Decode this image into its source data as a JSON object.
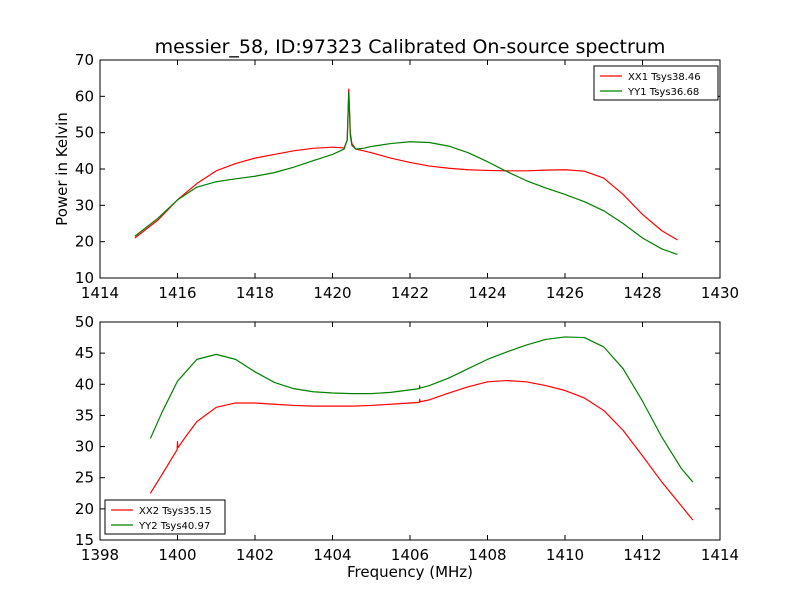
{
  "figure": {
    "title": "messier_58, ID:97323 Calibrated On-source spectrum",
    "ylabel": "Power in Kelvin",
    "xlabel": "Frequency (MHz)"
  },
  "colors": {
    "red": "#ff0000",
    "green": "#008000"
  },
  "chart_data": [
    {
      "type": "line",
      "title": "messier_58, ID:97323 Calibrated On-source spectrum",
      "ylabel": "Power in Kelvin",
      "xlabel": "",
      "xlim": [
        1414,
        1430
      ],
      "ylim": [
        10,
        70
      ],
      "xticks": [
        "1414",
        "1416",
        "1418",
        "1420",
        "1422",
        "1424",
        "1426",
        "1428",
        "1430"
      ],
      "yticks": [
        "10",
        "20",
        "30",
        "40",
        "50",
        "60",
        "70"
      ],
      "grid": false,
      "legend_position": "top-right",
      "series": [
        {
          "name": "XX1 Tsys38.46",
          "color": "#ff0000",
          "x": [
            1414.9,
            1415.5,
            1416.0,
            1416.5,
            1417.0,
            1417.5,
            1418.0,
            1418.5,
            1419.0,
            1419.5,
            1420.0,
            1420.3,
            1420.38,
            1420.42,
            1420.46,
            1420.5,
            1420.6,
            1420.8,
            1421.0,
            1421.5,
            1422.0,
            1422.5,
            1423.0,
            1423.5,
            1424.0,
            1424.5,
            1425.0,
            1425.5,
            1426.0,
            1426.5,
            1427.0,
            1427.5,
            1428.0,
            1428.5,
            1428.9
          ],
          "y": [
            21,
            26,
            31.5,
            36,
            39.5,
            41.5,
            43,
            44,
            45,
            45.7,
            46,
            45.8,
            48,
            62,
            50,
            47,
            45.5,
            45,
            44.5,
            43,
            41.8,
            40.8,
            40.2,
            39.8,
            39.6,
            39.5,
            39.5,
            39.7,
            39.8,
            39.4,
            37.5,
            33,
            27.5,
            23,
            20.5
          ]
        },
        {
          "name": "YY1 Tsys36.68",
          "color": "#008000",
          "x": [
            1414.9,
            1415.5,
            1416.0,
            1416.5,
            1417.0,
            1417.5,
            1418.0,
            1418.5,
            1419.0,
            1419.5,
            1420.0,
            1420.3,
            1420.38,
            1420.42,
            1420.46,
            1420.5,
            1420.6,
            1420.8,
            1421.0,
            1421.5,
            1422.0,
            1422.5,
            1423.0,
            1423.5,
            1424.0,
            1424.5,
            1425.0,
            1425.5,
            1426.0,
            1426.5,
            1427.0,
            1427.5,
            1428.0,
            1428.5,
            1428.9
          ],
          "y": [
            21.5,
            26.5,
            31.5,
            35,
            36.5,
            37.3,
            38,
            39,
            40.5,
            42.3,
            44,
            45.5,
            48,
            61,
            49,
            46.5,
            45.5,
            45.7,
            46.2,
            47,
            47.5,
            47.3,
            46.3,
            44.5,
            42,
            39.3,
            36.8,
            34.8,
            33,
            31,
            28.5,
            25,
            21,
            18,
            16.5
          ]
        }
      ]
    },
    {
      "type": "line",
      "title": "",
      "ylabel": "",
      "xlabel": "Frequency (MHz)",
      "xlim": [
        1398,
        1414
      ],
      "ylim": [
        15,
        50
      ],
      "xticks": [
        "1398",
        "1400",
        "1402",
        "1404",
        "1406",
        "1408",
        "1410",
        "1412",
        "1414"
      ],
      "yticks": [
        "15",
        "20",
        "25",
        "30",
        "35",
        "40",
        "45",
        "50"
      ],
      "grid": false,
      "legend_position": "bottom-left",
      "series": [
        {
          "name": "XX2 Tsys35.15",
          "color": "#ff0000",
          "x": [
            1399.3,
            1399.6,
            1399.99,
            1400.0,
            1400.01,
            1400.2,
            1400.5,
            1401.0,
            1401.5,
            1402.0,
            1402.5,
            1403.0,
            1403.5,
            1404.0,
            1404.5,
            1405.0,
            1405.5,
            1406.0,
            1406.24,
            1406.25,
            1406.26,
            1406.5,
            1407.0,
            1407.5,
            1408.0,
            1408.5,
            1409.0,
            1409.5,
            1410.0,
            1410.5,
            1411.0,
            1411.5,
            1412.0,
            1412.5,
            1413.0,
            1413.3
          ],
          "y": [
            22.5,
            25.5,
            29.5,
            30.8,
            29.8,
            31.5,
            34,
            36.3,
            37,
            37,
            36.8,
            36.6,
            36.5,
            36.5,
            36.5,
            36.6,
            36.8,
            37,
            37.1,
            37.6,
            37.2,
            37.5,
            38.6,
            39.6,
            40.4,
            40.6,
            40.4,
            39.8,
            39,
            37.8,
            35.8,
            32.6,
            28.5,
            24.3,
            20.5,
            18.2
          ]
        },
        {
          "name": "YY2 Tsys40.97",
          "color": "#008000",
          "x": [
            1399.3,
            1399.6,
            1400.0,
            1400.5,
            1401.0,
            1401.5,
            1402.0,
            1402.5,
            1403.0,
            1403.5,
            1404.0,
            1404.5,
            1405.0,
            1405.5,
            1406.0,
            1406.24,
            1406.25,
            1406.26,
            1406.5,
            1407.0,
            1407.5,
            1408.0,
            1408.5,
            1409.0,
            1409.5,
            1410.0,
            1410.5,
            1411.0,
            1411.5,
            1412.0,
            1412.5,
            1413.0,
            1413.3
          ],
          "y": [
            31.3,
            35.5,
            40.5,
            44,
            44.8,
            44,
            42,
            40.3,
            39.3,
            38.8,
            38.6,
            38.5,
            38.5,
            38.7,
            39.1,
            39.3,
            39.8,
            39.4,
            39.8,
            41,
            42.5,
            44,
            45.2,
            46.3,
            47.2,
            47.6,
            47.5,
            46,
            42.5,
            37.3,
            31.5,
            26.5,
            24.3
          ]
        }
      ]
    }
  ]
}
